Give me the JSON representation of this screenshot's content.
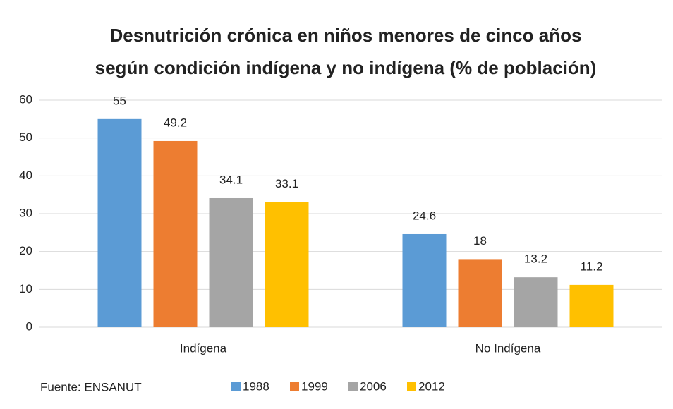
{
  "chart_data": {
    "type": "bar",
    "title": [
      "Desnutrición crónica en niños menores de cinco años",
      "según condición indígena y no indígena (% de población)"
    ],
    "categories": [
      "Indígena",
      "No Indígena"
    ],
    "series": [
      {
        "name": "1988",
        "color": "#5b9bd5",
        "values": [
          55,
          24.6
        ]
      },
      {
        "name": "1999",
        "color": "#ed7d31",
        "values": [
          49.2,
          18
        ]
      },
      {
        "name": "2006",
        "color": "#a5a5a5",
        "values": [
          34.1,
          13.2
        ]
      },
      {
        "name": "2012",
        "color": "#ffc000",
        "values": [
          33.1,
          11.2
        ]
      }
    ],
    "ylim": [
      0,
      60
    ],
    "yticks": [
      0,
      10,
      20,
      30,
      40,
      50,
      60
    ],
    "grid": true,
    "annotation": "Fuente: ENSANUT",
    "legend": "bottom"
  }
}
